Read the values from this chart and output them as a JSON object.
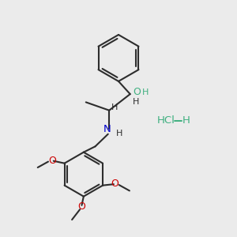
{
  "bg_color": "#ebebeb",
  "bond_color": "#2d2d2d",
  "o_color": "#cc0000",
  "n_color": "#0000cc",
  "oh_color": "#40b080",
  "cl_color": "#40b080",
  "line_width": 1.5,
  "fig_size": [
    3.0,
    3.0
  ],
  "dpi": 100,
  "xlim": [
    0,
    10
  ],
  "ylim": [
    0,
    10
  ]
}
